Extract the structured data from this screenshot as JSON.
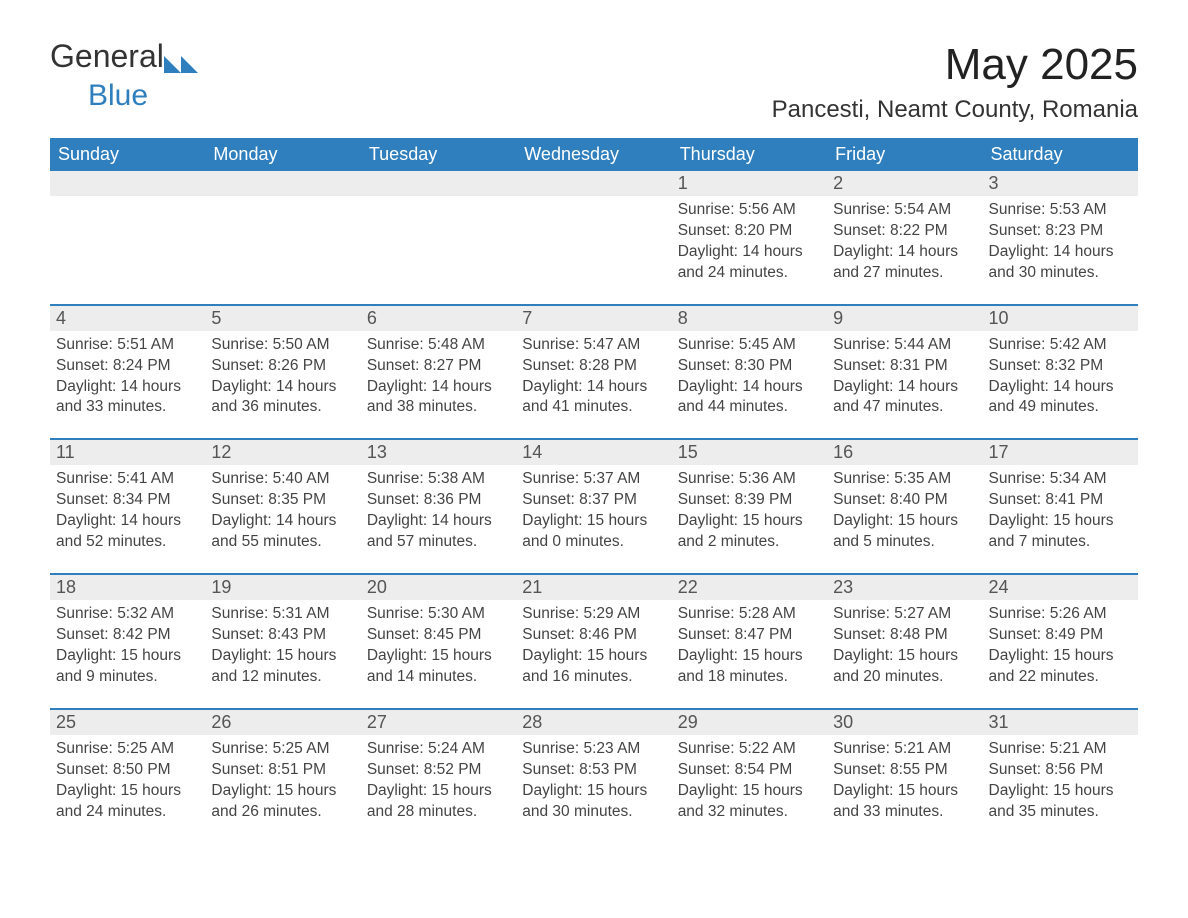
{
  "brand": {
    "name_part1": "General",
    "name_part2": "Blue",
    "accent_color": "#2f7fbf"
  },
  "title": "May 2025",
  "location": "Pancesti, Neamt County, Romania",
  "colors": {
    "header_bg": "#2f7fbf",
    "header_text": "#ffffff",
    "daynum_bg": "#ededed",
    "text": "#444444",
    "rule": "#2f7fbf",
    "page_bg": "#ffffff"
  },
  "typography": {
    "title_fontsize": 44,
    "location_fontsize": 24,
    "header_fontsize": 18,
    "daynum_fontsize": 18,
    "body_fontsize": 15.5
  },
  "weekdays": [
    "Sunday",
    "Monday",
    "Tuesday",
    "Wednesday",
    "Thursday",
    "Friday",
    "Saturday"
  ],
  "labels": {
    "sunrise": "Sunrise:",
    "sunset": "Sunset:",
    "daylight": "Daylight:"
  },
  "weeks": [
    [
      {
        "empty": true
      },
      {
        "empty": true
      },
      {
        "empty": true
      },
      {
        "empty": true
      },
      {
        "day": "1",
        "sunrise": "5:56 AM",
        "sunset": "8:20 PM",
        "daylight": "14 hours and 24 minutes."
      },
      {
        "day": "2",
        "sunrise": "5:54 AM",
        "sunset": "8:22 PM",
        "daylight": "14 hours and 27 minutes."
      },
      {
        "day": "3",
        "sunrise": "5:53 AM",
        "sunset": "8:23 PM",
        "daylight": "14 hours and 30 minutes."
      }
    ],
    [
      {
        "day": "4",
        "sunrise": "5:51 AM",
        "sunset": "8:24 PM",
        "daylight": "14 hours and 33 minutes."
      },
      {
        "day": "5",
        "sunrise": "5:50 AM",
        "sunset": "8:26 PM",
        "daylight": "14 hours and 36 minutes."
      },
      {
        "day": "6",
        "sunrise": "5:48 AM",
        "sunset": "8:27 PM",
        "daylight": "14 hours and 38 minutes."
      },
      {
        "day": "7",
        "sunrise": "5:47 AM",
        "sunset": "8:28 PM",
        "daylight": "14 hours and 41 minutes."
      },
      {
        "day": "8",
        "sunrise": "5:45 AM",
        "sunset": "8:30 PM",
        "daylight": "14 hours and 44 minutes."
      },
      {
        "day": "9",
        "sunrise": "5:44 AM",
        "sunset": "8:31 PM",
        "daylight": "14 hours and 47 minutes."
      },
      {
        "day": "10",
        "sunrise": "5:42 AM",
        "sunset": "8:32 PM",
        "daylight": "14 hours and 49 minutes."
      }
    ],
    [
      {
        "day": "11",
        "sunrise": "5:41 AM",
        "sunset": "8:34 PM",
        "daylight": "14 hours and 52 minutes."
      },
      {
        "day": "12",
        "sunrise": "5:40 AM",
        "sunset": "8:35 PM",
        "daylight": "14 hours and 55 minutes."
      },
      {
        "day": "13",
        "sunrise": "5:38 AM",
        "sunset": "8:36 PM",
        "daylight": "14 hours and 57 minutes."
      },
      {
        "day": "14",
        "sunrise": "5:37 AM",
        "sunset": "8:37 PM",
        "daylight": "15 hours and 0 minutes."
      },
      {
        "day": "15",
        "sunrise": "5:36 AM",
        "sunset": "8:39 PM",
        "daylight": "15 hours and 2 minutes."
      },
      {
        "day": "16",
        "sunrise": "5:35 AM",
        "sunset": "8:40 PM",
        "daylight": "15 hours and 5 minutes."
      },
      {
        "day": "17",
        "sunrise": "5:34 AM",
        "sunset": "8:41 PM",
        "daylight": "15 hours and 7 minutes."
      }
    ],
    [
      {
        "day": "18",
        "sunrise": "5:32 AM",
        "sunset": "8:42 PM",
        "daylight": "15 hours and 9 minutes."
      },
      {
        "day": "19",
        "sunrise": "5:31 AM",
        "sunset": "8:43 PM",
        "daylight": "15 hours and 12 minutes."
      },
      {
        "day": "20",
        "sunrise": "5:30 AM",
        "sunset": "8:45 PM",
        "daylight": "15 hours and 14 minutes."
      },
      {
        "day": "21",
        "sunrise": "5:29 AM",
        "sunset": "8:46 PM",
        "daylight": "15 hours and 16 minutes."
      },
      {
        "day": "22",
        "sunrise": "5:28 AM",
        "sunset": "8:47 PM",
        "daylight": "15 hours and 18 minutes."
      },
      {
        "day": "23",
        "sunrise": "5:27 AM",
        "sunset": "8:48 PM",
        "daylight": "15 hours and 20 minutes."
      },
      {
        "day": "24",
        "sunrise": "5:26 AM",
        "sunset": "8:49 PM",
        "daylight": "15 hours and 22 minutes."
      }
    ],
    [
      {
        "day": "25",
        "sunrise": "5:25 AM",
        "sunset": "8:50 PM",
        "daylight": "15 hours and 24 minutes."
      },
      {
        "day": "26",
        "sunrise": "5:25 AM",
        "sunset": "8:51 PM",
        "daylight": "15 hours and 26 minutes."
      },
      {
        "day": "27",
        "sunrise": "5:24 AM",
        "sunset": "8:52 PM",
        "daylight": "15 hours and 28 minutes."
      },
      {
        "day": "28",
        "sunrise": "5:23 AM",
        "sunset": "8:53 PM",
        "daylight": "15 hours and 30 minutes."
      },
      {
        "day": "29",
        "sunrise": "5:22 AM",
        "sunset": "8:54 PM",
        "daylight": "15 hours and 32 minutes."
      },
      {
        "day": "30",
        "sunrise": "5:21 AM",
        "sunset": "8:55 PM",
        "daylight": "15 hours and 33 minutes."
      },
      {
        "day": "31",
        "sunrise": "5:21 AM",
        "sunset": "8:56 PM",
        "daylight": "15 hours and 35 minutes."
      }
    ]
  ]
}
